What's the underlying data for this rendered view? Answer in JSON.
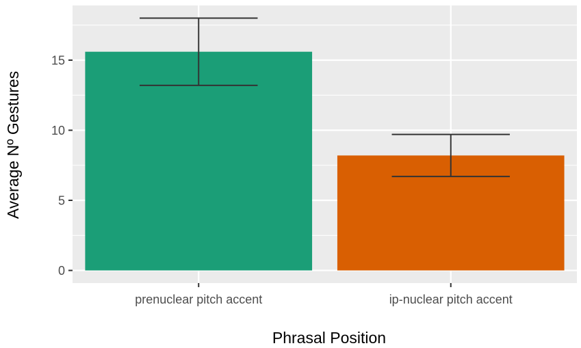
{
  "chart_data": {
    "type": "bar",
    "categories": [
      "prenuclear pitch accent",
      "ip-nuclear pitch accent"
    ],
    "values": [
      15.6,
      8.2
    ],
    "error_bars": [
      {
        "low": 13.2,
        "high": 18.0
      },
      {
        "low": 6.7,
        "high": 9.7
      }
    ],
    "colors": [
      "#1b9e77",
      "#d95f02"
    ],
    "xlabel": "Phrasal Position",
    "ylabel": "Average Nº Gestures",
    "ylim": [
      -0.9,
      18.9
    ],
    "yticks": [
      0,
      5,
      10,
      15
    ],
    "grid": true,
    "legend": "none",
    "panel_background": "#ebebeb",
    "gridline_color": "#ffffff",
    "error_bar_color": "#333333"
  }
}
